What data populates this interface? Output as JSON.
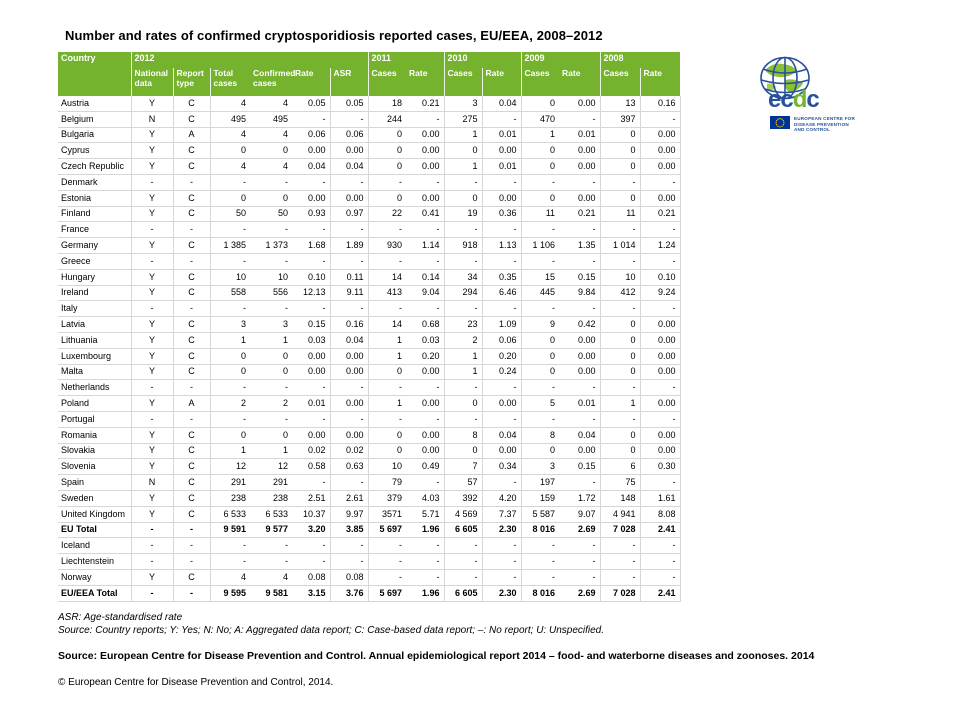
{
  "title": "Number  and rates of confirmed  cryptosporidiosis  reported cases, EU/EEA,  2008–2012",
  "colors": {
    "header_green": "#75b22e",
    "row_border_gray": "#d6d6d6",
    "logo_blue": "#27519b",
    "logo_green": "#76b32f",
    "flag_blue": "#003399",
    "star_yellow": "#ffcc00"
  },
  "logo": {
    "wordmark": {
      "e": "e",
      "c1": "c",
      "d": "d",
      "c2": "c"
    },
    "org_lines": [
      "EUROPEAN CENTRE FOR",
      "DISEASE PREVENTION",
      "AND CONTROL"
    ]
  },
  "table": {
    "header": {
      "country": "Country",
      "y2012": "2012",
      "y2011": "2011",
      "y2010": "2010",
      "y2009": "2009",
      "y2008": "2008"
    },
    "subheaders": [
      "National data",
      "Report type",
      "Total cases",
      "Confirmed cases",
      "Rate",
      "ASR",
      "Cases",
      "Rate",
      "Cases",
      "Rate",
      "Cases",
      "Rate",
      "Cases",
      "Rate"
    ],
    "rows": [
      {
        "country": "Austria",
        "bold": false,
        "cells": [
          "Y",
          "C",
          "4",
          "4",
          "0.05",
          "0.05",
          "18",
          "0.21",
          "3",
          "0.04",
          "0",
          "0.00",
          "13",
          "0.16"
        ]
      },
      {
        "country": "Belgium",
        "bold": false,
        "cells": [
          "N",
          "C",
          "495",
          "495",
          "-",
          "-",
          "244",
          "-",
          "275",
          "-",
          "470",
          "-",
          "397",
          "-"
        ]
      },
      {
        "country": "Bulgaria",
        "bold": false,
        "cells": [
          "Y",
          "A",
          "4",
          "4",
          "0.06",
          "0.06",
          "0",
          "0.00",
          "1",
          "0.01",
          "1",
          "0.01",
          "0",
          "0.00"
        ]
      },
      {
        "country": "Cyprus",
        "bold": false,
        "cells": [
          "Y",
          "C",
          "0",
          "0",
          "0.00",
          "0.00",
          "0",
          "0.00",
          "0",
          "0.00",
          "0",
          "0.00",
          "0",
          "0.00"
        ]
      },
      {
        "country": "Czech Republic",
        "bold": false,
        "cells": [
          "Y",
          "C",
          "4",
          "4",
          "0.04",
          "0.04",
          "0",
          "0.00",
          "1",
          "0.01",
          "0",
          "0.00",
          "0",
          "0.00"
        ]
      },
      {
        "country": "Denmark",
        "bold": false,
        "cells": [
          "-",
          "-",
          "-",
          "-",
          "-",
          "-",
          "-",
          "-",
          "-",
          "-",
          "-",
          "-",
          "-",
          "-"
        ]
      },
      {
        "country": "Estonia",
        "bold": false,
        "cells": [
          "Y",
          "C",
          "0",
          "0",
          "0.00",
          "0.00",
          "0",
          "0.00",
          "0",
          "0.00",
          "0",
          "0.00",
          "0",
          "0.00"
        ]
      },
      {
        "country": "Finland",
        "bold": false,
        "cells": [
          "Y",
          "C",
          "50",
          "50",
          "0.93",
          "0.97",
          "22",
          "0.41",
          "19",
          "0.36",
          "11",
          "0.21",
          "11",
          "0.21"
        ]
      },
      {
        "country": "France",
        "bold": false,
        "cells": [
          "-",
          "-",
          "-",
          "-",
          "-",
          "-",
          "-",
          "-",
          "-",
          "-",
          "-",
          "-",
          "-",
          "-"
        ]
      },
      {
        "country": "Germany",
        "bold": false,
        "cells": [
          "Y",
          "C",
          "1 385",
          "1 373",
          "1.68",
          "1.89",
          "930",
          "1.14",
          "918",
          "1.13",
          "1 106",
          "1.35",
          "1 014",
          "1.24"
        ]
      },
      {
        "country": "Greece",
        "bold": false,
        "cells": [
          "-",
          "-",
          "-",
          "-",
          "-",
          "-",
          "-",
          "-",
          "-",
          "-",
          "-",
          "-",
          "-",
          "-"
        ]
      },
      {
        "country": "Hungary",
        "bold": false,
        "cells": [
          "Y",
          "C",
          "10",
          "10",
          "0.10",
          "0.11",
          "14",
          "0.14",
          "34",
          "0.35",
          "15",
          "0.15",
          "10",
          "0.10"
        ]
      },
      {
        "country": "Ireland",
        "bold": false,
        "cells": [
          "Y",
          "C",
          "558",
          "556",
          "12.13",
          "9.11",
          "413",
          "9.04",
          "294",
          "6.46",
          "445",
          "9.84",
          "412",
          "9.24"
        ]
      },
      {
        "country": "Italy",
        "bold": false,
        "cells": [
          "-",
          "-",
          "-",
          "-",
          "-",
          "-",
          "-",
          "-",
          "-",
          "-",
          "-",
          "-",
          "-",
          "-"
        ]
      },
      {
        "country": "Latvia",
        "bold": false,
        "cells": [
          "Y",
          "C",
          "3",
          "3",
          "0.15",
          "0.16",
          "14",
          "0.68",
          "23",
          "1.09",
          "9",
          "0.42",
          "0",
          "0.00"
        ]
      },
      {
        "country": "Lithuania",
        "bold": false,
        "cells": [
          "Y",
          "C",
          "1",
          "1",
          "0.03",
          "0.04",
          "1",
          "0.03",
          "2",
          "0.06",
          "0",
          "0.00",
          "0",
          "0.00"
        ]
      },
      {
        "country": "Luxembourg",
        "bold": false,
        "cells": [
          "Y",
          "C",
          "0",
          "0",
          "0.00",
          "0.00",
          "1",
          "0.20",
          "1",
          "0.20",
          "0",
          "0.00",
          "0",
          "0.00"
        ]
      },
      {
        "country": "Malta",
        "bold": false,
        "cells": [
          "Y",
          "C",
          "0",
          "0",
          "0.00",
          "0.00",
          "0",
          "0.00",
          "1",
          "0.24",
          "0",
          "0.00",
          "0",
          "0.00"
        ]
      },
      {
        "country": "Netherlands",
        "bold": false,
        "cells": [
          "-",
          "-",
          "-",
          "-",
          "-",
          "-",
          "-",
          "-",
          "-",
          "-",
          "-",
          "-",
          "-",
          "-"
        ]
      },
      {
        "country": "Poland",
        "bold": false,
        "cells": [
          "Y",
          "A",
          "2",
          "2",
          "0.01",
          "0.00",
          "1",
          "0.00",
          "0",
          "0.00",
          "5",
          "0.01",
          "1",
          "0.00"
        ]
      },
      {
        "country": "Portugal",
        "bold": false,
        "cells": [
          "-",
          "-",
          "-",
          "-",
          "-",
          "-",
          "-",
          "-",
          "-",
          "-",
          "-",
          "-",
          "-",
          "-"
        ]
      },
      {
        "country": "Romania",
        "bold": false,
        "cells": [
          "Y",
          "C",
          "0",
          "0",
          "0.00",
          "0.00",
          "0",
          "0.00",
          "8",
          "0.04",
          "8",
          "0.04",
          "0",
          "0.00"
        ]
      },
      {
        "country": "Slovakia",
        "bold": false,
        "cells": [
          "Y",
          "C",
          "1",
          "1",
          "0.02",
          "0.02",
          "0",
          "0.00",
          "0",
          "0.00",
          "0",
          "0.00",
          "0",
          "0.00"
        ]
      },
      {
        "country": "Slovenia",
        "bold": false,
        "cells": [
          "Y",
          "C",
          "12",
          "12",
          "0.58",
          "0.63",
          "10",
          "0.49",
          "7",
          "0.34",
          "3",
          "0.15",
          "6",
          "0.30"
        ]
      },
      {
        "country": "Spain",
        "bold": false,
        "cells": [
          "N",
          "C",
          "291",
          "291",
          "-",
          "-",
          "79",
          "-",
          "57",
          "-",
          "197",
          "-",
          "75",
          "-"
        ]
      },
      {
        "country": "Sweden",
        "bold": false,
        "cells": [
          "Y",
          "C",
          "238",
          "238",
          "2.51",
          "2.61",
          "379",
          "4.03",
          "392",
          "4.20",
          "159",
          "1.72",
          "148",
          "1.61"
        ]
      },
      {
        "country": "United Kingdom",
        "bold": false,
        "cells": [
          "Y",
          "C",
          "6 533",
          "6 533",
          "10.37",
          "9.97",
          "3571",
          "5.71",
          "4 569",
          "7.37",
          "5 587",
          "9.07",
          "4 941",
          "8.08"
        ]
      },
      {
        "country": "EU Total",
        "bold": true,
        "cells": [
          "-",
          "-",
          "9 591",
          "9 577",
          "3.20",
          "3.85",
          "5 697",
          "1.96",
          "6 605",
          "2.30",
          "8 016",
          "2.69",
          "7 028",
          "2.41"
        ]
      },
      {
        "country": "Iceland",
        "bold": false,
        "cells": [
          "-",
          "-",
          "-",
          "-",
          "-",
          "-",
          "-",
          "-",
          "-",
          "-",
          "-",
          "-",
          "-",
          "-"
        ]
      },
      {
        "country": "Liechtenstein",
        "bold": false,
        "cells": [
          "-",
          "-",
          "-",
          "-",
          "-",
          "-",
          "-",
          "-",
          "-",
          "-",
          "-",
          "-",
          "-",
          "-"
        ]
      },
      {
        "country": "Norway",
        "bold": false,
        "cells": [
          "Y",
          "C",
          "4",
          "4",
          "0.08",
          "0.08",
          "-",
          "-",
          "-",
          "-",
          "-",
          "-",
          "-",
          "-"
        ]
      },
      {
        "country": "EU/EEA Total",
        "bold": true,
        "cells": [
          "-",
          "-",
          "9 595",
          "9 581",
          "3.15",
          "3.76",
          "5 697",
          "1.96",
          "6 605",
          "2.30",
          "8 016",
          "2.69",
          "7 028",
          "2.41"
        ]
      }
    ]
  },
  "footnotes": {
    "asr": "ASR:  Age-standardised rate",
    "source_note": "Source: Country reports; Y: Yes; N: No; A: Aggregated data report; C: Case-based data report; –: No report; U: Unspecified.",
    "source_bold": "Source: European Centre for Disease Prevention and Control.  Annual epidemiological report 2014 – food- and waterborne diseases and zoonoses.  2014",
    "copyright": "© European Centre for Disease Prevention and Control, 2014."
  }
}
